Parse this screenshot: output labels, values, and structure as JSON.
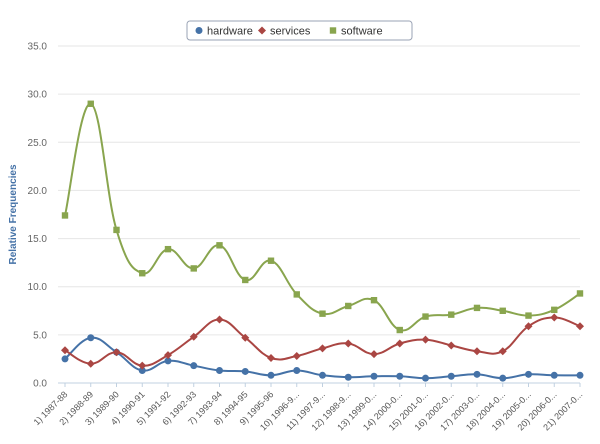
{
  "chart_data": {
    "type": "line",
    "ylabel": "Relative Frequencies",
    "ylim": [
      0,
      35
    ],
    "y_ticks": [
      "0.0",
      "5.0",
      "10.0",
      "15.0",
      "20.0",
      "25.0",
      "30.0",
      "35.0"
    ],
    "grid": true,
    "legend_position": "top-center",
    "categories": [
      "1) 1987-88",
      "2) 1988-89",
      "3) 1989-90",
      "4) 1990-91",
      "5) 1991-92",
      "6) 1992-93",
      "7) 1993-94",
      "8) 1994-95",
      "9) 1995-96",
      "10) 1996-9...",
      "11) 1997-9...",
      "12) 1998-9...",
      "13) 1999-0...",
      "14) 2000-0...",
      "15) 2001-0...",
      "16) 2002-0...",
      "17) 2003-0...",
      "18) 2004-0...",
      "19) 2005-0...",
      "20) 2006-0...",
      "21) 2007-0..."
    ],
    "series": [
      {
        "name": "hardware",
        "color": "#4572a7",
        "marker": "circle",
        "values": [
          2.5,
          4.7,
          3.2,
          1.3,
          2.3,
          1.8,
          1.3,
          1.2,
          0.8,
          1.3,
          0.8,
          0.6,
          0.7,
          0.7,
          0.5,
          0.7,
          0.9,
          0.5,
          0.9,
          0.8,
          0.8
        ]
      },
      {
        "name": "services",
        "color": "#aa4643",
        "marker": "diamond",
        "values": [
          3.4,
          2.0,
          3.2,
          1.8,
          2.9,
          4.8,
          6.6,
          4.7,
          2.6,
          2.8,
          3.6,
          4.1,
          3.0,
          4.1,
          4.5,
          3.9,
          3.3,
          3.3,
          5.9,
          6.8,
          5.9
        ]
      },
      {
        "name": "software",
        "color": "#89a54e",
        "marker": "square",
        "values": [
          17.4,
          29.0,
          15.9,
          11.4,
          13.9,
          11.9,
          14.3,
          10.7,
          12.7,
          9.2,
          7.2,
          8.0,
          8.6,
          5.5,
          6.9,
          7.1,
          7.8,
          7.5,
          7.0,
          7.6,
          9.3
        ]
      }
    ]
  }
}
